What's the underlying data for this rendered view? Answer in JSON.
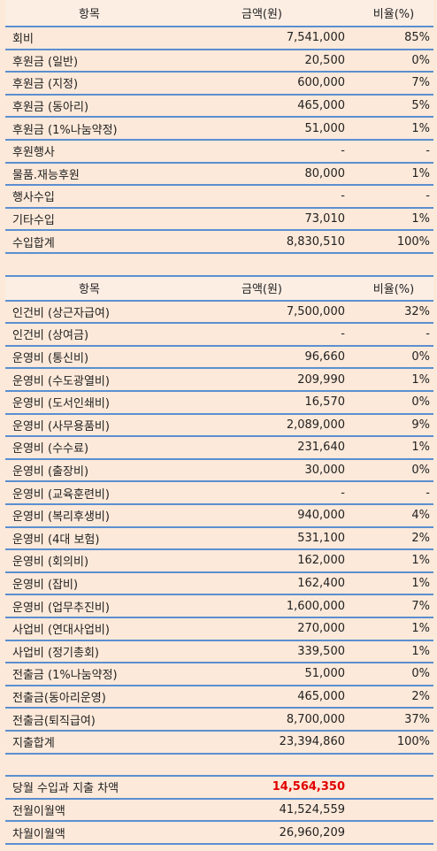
{
  "income": {
    "header": [
      "항목",
      "금액(원)",
      "비율(%)"
    ],
    "rows": [
      [
        "회비",
        "7,541,000",
        "85%"
      ],
      [
        "후원금 (일반)",
        "20,500",
        "0%"
      ],
      [
        "후원금 (지정)",
        "600,000",
        "7%"
      ],
      [
        "후원금 (동아리)",
        "465,000",
        "5%"
      ],
      [
        "후원금 (1%나눔약정)",
        "51,000",
        "1%"
      ],
      [
        "후원행사",
        "-",
        "-"
      ],
      [
        "물품.재능후원",
        "80,000",
        "1%"
      ],
      [
        "행사수입",
        "-",
        "-"
      ],
      [
        "기타수입",
        "73,010",
        "1%"
      ],
      [
        "수입합계",
        "8,830,510",
        "100%"
      ]
    ]
  },
  "expense": {
    "header": [
      "항목",
      "금액(원)",
      "비율(%)"
    ],
    "rows": [
      [
        "인건비 (상근자급여)",
        "7,500,000",
        "32%"
      ],
      [
        "인건비 (상여금)",
        "-",
        "-"
      ],
      [
        "운영비 (통신비)",
        "96,660",
        "0%"
      ],
      [
        "운영비 (수도광열비)",
        "209,990",
        "1%"
      ],
      [
        "운영비 (도서인쇄비)",
        "16,570",
        "0%"
      ],
      [
        "운영비 (사무용품비)",
        "2,089,000",
        "9%"
      ],
      [
        "운영비 (수수료)",
        "231,640",
        "1%"
      ],
      [
        "운영비 (출장비)",
        "30,000",
        "0%"
      ],
      [
        "운영비 (교육훈련비)",
        "-",
        "-"
      ],
      [
        "운영비 (복리후생비)",
        "940,000",
        "4%"
      ],
      [
        "운영비 (4대 보험)",
        "531,100",
        "2%"
      ],
      [
        "운영비 (회의비)",
        "162,000",
        "1%"
      ],
      [
        "운영비 (잡비)",
        "162,400",
        "1%"
      ],
      [
        "운영비 (업무추진비)",
        "1,600,000",
        "7%"
      ],
      [
        "사업비 (연대사업비)",
        "270,000",
        "1%"
      ],
      [
        "사업비 (정기총회)",
        "339,500",
        "1%"
      ],
      [
        "전출금 (1%나눔약정)",
        "51,000",
        "0%"
      ],
      [
        "전출금(동아리운영)",
        "465,000",
        "2%"
      ],
      [
        "전출금(퇴직급여)",
        "8,700,000",
        "37%"
      ],
      [
        "지출합계",
        "23,394,860",
        "100%"
      ]
    ]
  },
  "summary": {
    "rows": [
      [
        "당월 수입과 지출 차액",
        "14,564,350"
      ],
      [
        "전월이월액",
        "41,524,559"
      ],
      [
        "차월이월액",
        "26,960,209"
      ]
    ]
  }
}
